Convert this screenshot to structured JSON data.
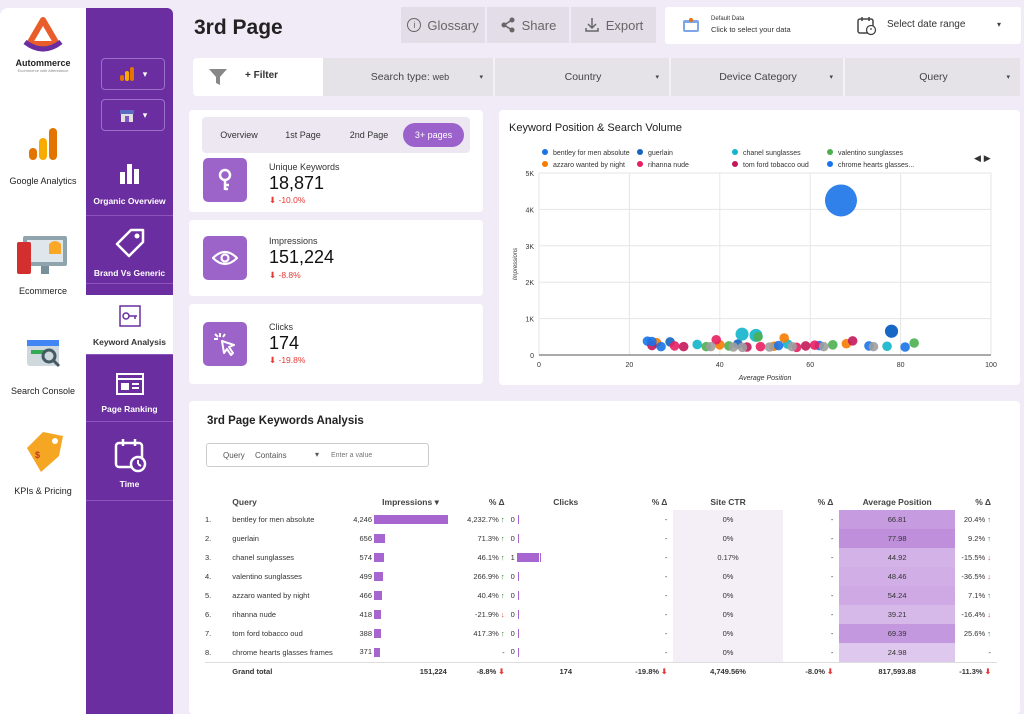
{
  "rail": {
    "brand": "Autommerce",
    "brand_sub": "Ecommerce with Attendance",
    "items": [
      {
        "label": "Google Analytics",
        "icon": "google-analytics-icon"
      },
      {
        "label": "Ecommerce",
        "icon": "ecommerce-icon"
      },
      {
        "label": "Search Console",
        "icon": "search-console-icon"
      },
      {
        "label": "KPIs & Pricing",
        "icon": "price-tag-icon"
      }
    ]
  },
  "nav": {
    "items": [
      {
        "label": "Organic Overview",
        "icon": "bar-chart-icon"
      },
      {
        "label": "Brand Vs Generic",
        "icon": "tag-icon"
      },
      {
        "label": "Keyword Analysis",
        "icon": "key-icon"
      },
      {
        "label": "Page Ranking",
        "icon": "ranking-icon"
      },
      {
        "label": "Time",
        "icon": "calendar-icon"
      }
    ],
    "active_index": 2
  },
  "header": {
    "title": "3rd Page",
    "glossary": "Glossary",
    "share": "Share",
    "export": "Export",
    "default_data_title": "Default Data",
    "default_data_sub": "Click to select your data",
    "date_range": "Select date range"
  },
  "filters": {
    "add": "+ Filter",
    "search_type_label": "Search type:",
    "search_type_value": "web",
    "country": "Country",
    "device": "Device Category",
    "query": "Query"
  },
  "tabs": [
    "Overview",
    "1st Page",
    "2nd Page",
    "3+ pages"
  ],
  "tabs_active": 3,
  "kpis": [
    {
      "label": "Unique Keywords",
      "value": "18,871",
      "delta": "-10.0%",
      "icon": "key-icon"
    },
    {
      "label": "Impressions",
      "value": "151,224",
      "delta": "-8.8%",
      "icon": "eye-icon"
    },
    {
      "label": "Clicks",
      "value": "174",
      "delta": "-19.8%",
      "icon": "cursor-click-icon"
    }
  ],
  "chart_data": {
    "type": "scatter",
    "title": "Keyword Position & Search Volume",
    "xlabel": "Average Position",
    "ylabel": "Impressions",
    "xlim": [
      0,
      100
    ],
    "ylim": [
      0,
      5000
    ],
    "xticks": [
      "0",
      "20",
      "40",
      "60",
      "80",
      "100"
    ],
    "yticks": [
      "0",
      "1K",
      "2K",
      "3K",
      "4K",
      "5K"
    ],
    "legend_position": "top",
    "series": [
      {
        "name": "bentley for men absolute",
        "color": "#1a73e8",
        "points": [
          [
            66.81,
            4246
          ],
          [
            24,
            380
          ],
          [
            78,
            650
          ],
          [
            62,
            260
          ]
        ]
      },
      {
        "name": "guerlain",
        "color": "#1565c0",
        "points": [
          [
            77.98,
            656
          ],
          [
            44,
            300
          ],
          [
            29,
            360
          ]
        ]
      },
      {
        "name": "chanel sunglasses",
        "color": "#12b5cb",
        "points": [
          [
            44.92,
            574
          ],
          [
            35,
            290
          ],
          [
            48,
            540
          ],
          [
            55,
            300
          ],
          [
            77,
            240
          ]
        ]
      },
      {
        "name": "valentino sunglasses",
        "color": "#4caf50",
        "points": [
          [
            48.46,
            499
          ],
          [
            42,
            250
          ],
          [
            83,
            330
          ],
          [
            65,
            280
          ],
          [
            37,
            230
          ]
        ]
      },
      {
        "name": "azzaro wanted by night",
        "color": "#f57c00",
        "points": [
          [
            54.24,
            466
          ],
          [
            26,
            340
          ],
          [
            40,
            280
          ],
          [
            52,
            240
          ],
          [
            68,
            310
          ]
        ]
      },
      {
        "name": "rihanna nude",
        "color": "#e91e63",
        "points": [
          [
            39.21,
            418
          ],
          [
            30,
            250
          ],
          [
            49,
            230
          ],
          [
            61,
            270
          ],
          [
            57,
            210
          ]
        ]
      },
      {
        "name": "tom ford tobacco oud",
        "color": "#c2185b",
        "points": [
          [
            69.39,
            388
          ],
          [
            25,
            260
          ],
          [
            46,
            220
          ],
          [
            32,
            230
          ],
          [
            59,
            250
          ]
        ]
      },
      {
        "name": "chrome hearts glasses...",
        "color": "#1a73e8",
        "points": [
          [
            24.98,
            371
          ],
          [
            27,
            230
          ],
          [
            53,
            260
          ],
          [
            81,
            220
          ],
          [
            73,
            250
          ]
        ]
      },
      {
        "name": "",
        "color": "#9e9e9e",
        "points": [
          [
            38,
            230
          ],
          [
            43,
            220
          ],
          [
            51,
            220
          ],
          [
            63,
            230
          ],
          [
            45,
            210
          ],
          [
            56,
            230
          ],
          [
            74,
            230
          ]
        ]
      }
    ],
    "legend_page_arrows": "◀ ▶"
  },
  "table": {
    "title": "3rd Page Keywords Analysis",
    "filter_field": "Query",
    "filter_op": "Contains",
    "filter_placeholder": "Enter a value",
    "headers": [
      "Query",
      "Impressions ▾",
      "% Δ",
      "Clicks",
      "% Δ",
      "Site CTR",
      "% Δ",
      "Average Position",
      "% Δ"
    ],
    "max_impressions": 4246,
    "rows": [
      {
        "n": "1.",
        "q": "bentley for men absolute",
        "imp": "4,246",
        "impv": 4246,
        "impd": "4,232.7%",
        "impd_s": "up",
        "clk": "0",
        "clkv": 0,
        "clkd": "-",
        "ctr": "0%",
        "ctrd": "-",
        "avg": "66.81",
        "avgv": 66.81,
        "avgd": "20.4%",
        "avgd_s": "up"
      },
      {
        "n": "2.",
        "q": "guerlain",
        "imp": "656",
        "impv": 656,
        "impd": "71.3%",
        "impd_s": "up",
        "clk": "0",
        "clkv": 0,
        "clkd": "-",
        "ctr": "0%",
        "ctrd": "-",
        "avg": "77.98",
        "avgv": 77.98,
        "avgd": "9.2%",
        "avgd_s": "up"
      },
      {
        "n": "3.",
        "q": "chanel sunglasses",
        "imp": "574",
        "impv": 574,
        "impd": "46.1%",
        "impd_s": "up",
        "clk": "1",
        "clkv": 1,
        "clkd": "-",
        "ctr": "0.17%",
        "ctrd": "-",
        "avg": "44.92",
        "avgv": 44.92,
        "avgd": "-15.5%",
        "avgd_s": "down"
      },
      {
        "n": "4.",
        "q": "valentino sunglasses",
        "imp": "499",
        "impv": 499,
        "impd": "266.9%",
        "impd_s": "up",
        "clk": "0",
        "clkv": 0,
        "clkd": "-",
        "ctr": "0%",
        "ctrd": "-",
        "avg": "48.46",
        "avgv": 48.46,
        "avgd": "-36.5%",
        "avgd_s": "down"
      },
      {
        "n": "5.",
        "q": "azzaro wanted by night",
        "imp": "466",
        "impv": 466,
        "impd": "40.4%",
        "impd_s": "up",
        "clk": "0",
        "clkv": 0,
        "clkd": "-",
        "ctr": "0%",
        "ctrd": "-",
        "avg": "54.24",
        "avgv": 54.24,
        "avgd": "7.1%",
        "avgd_s": "up"
      },
      {
        "n": "6.",
        "q": "rihanna nude",
        "imp": "418",
        "impv": 418,
        "impd": "-21.9%",
        "impd_s": "down",
        "clk": "0",
        "clkv": 0,
        "clkd": "-",
        "ctr": "0%",
        "ctrd": "-",
        "avg": "39.21",
        "avgv": 39.21,
        "avgd": "-16.4%",
        "avgd_s": "down"
      },
      {
        "n": "7.",
        "q": "tom ford tobacco oud",
        "imp": "388",
        "impv": 388,
        "impd": "417.3%",
        "impd_s": "up",
        "clk": "0",
        "clkv": 0,
        "clkd": "-",
        "ctr": "0%",
        "ctrd": "-",
        "avg": "69.39",
        "avgv": 69.39,
        "avgd": "25.6%",
        "avgd_s": "up"
      },
      {
        "n": "8.",
        "q": "chrome hearts glasses frames",
        "imp": "371",
        "impv": 371,
        "impd": "-",
        "impd_s": "",
        "clk": "0",
        "clkv": 0,
        "clkd": "-",
        "ctr": "0%",
        "ctrd": "-",
        "avg": "24.98",
        "avgv": 24.98,
        "avgd": "-",
        "avgd_s": ""
      }
    ],
    "total": {
      "label": "Grand total",
      "imp": "151,224",
      "impd": "-8.8%",
      "clk": "174",
      "clkd": "-19.8%",
      "ctr": "4,749.56%",
      "ctrd": "-8.0%",
      "avg": "817,593.88",
      "avgd": "-11.3%"
    }
  }
}
